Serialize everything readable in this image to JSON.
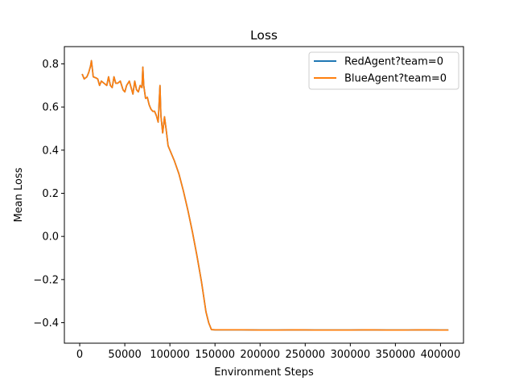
{
  "chart_data": {
    "type": "line",
    "title": "Loss",
    "xlabel": "Environment Steps",
    "ylabel": "Mean Loss",
    "xlim": [
      -17000,
      425500
    ],
    "ylim": [
      -0.495,
      0.88
    ],
    "xticks": [
      0,
      50000,
      100000,
      150000,
      200000,
      250000,
      300000,
      350000,
      400000
    ],
    "xtick_labels": [
      "0",
      "50000",
      "100000",
      "150000",
      "200000",
      "250000",
      "300000",
      "350000",
      "400000"
    ],
    "yticks": [
      -0.4,
      -0.2,
      0.0,
      0.2,
      0.4,
      0.6,
      0.8
    ],
    "ytick_labels": [
      "−0.4",
      "−0.2",
      "0.0",
      "0.2",
      "0.4",
      "0.6",
      "0.8"
    ],
    "grid": false,
    "legend_position": "upper right",
    "series": [
      {
        "name": "RedAgent?team=0",
        "color": "#1f77b4",
        "x": [
          3000,
          5000,
          8000,
          10000,
          12000,
          13000,
          15000,
          18000,
          20000,
          22000,
          24000,
          27000,
          30000,
          32000,
          34000,
          36000,
          38000,
          40000,
          42000,
          45000,
          48000,
          50000,
          52000,
          55000,
          57000,
          59000,
          61000,
          63000,
          65000,
          67000,
          69000,
          70000,
          71000,
          73000,
          75000,
          77000,
          79000,
          81000,
          83000,
          85000,
          87000,
          89000,
          90000,
          92000,
          94000,
          96000,
          98000,
          100000,
          105000,
          110000,
          115000,
          120000,
          125000,
          130000,
          135000,
          140000,
          143000,
          146000,
          150000,
          160000,
          180000,
          200000,
          220000,
          240000,
          260000,
          280000,
          300000,
          320000,
          340000,
          360000,
          380000,
          400000,
          408000
        ],
        "y": [
          0.75,
          0.73,
          0.74,
          0.76,
          0.79,
          0.815,
          0.74,
          0.735,
          0.73,
          0.7,
          0.72,
          0.71,
          0.7,
          0.74,
          0.7,
          0.69,
          0.74,
          0.71,
          0.71,
          0.72,
          0.68,
          0.67,
          0.7,
          0.72,
          0.69,
          0.66,
          0.72,
          0.68,
          0.67,
          0.7,
          0.69,
          0.785,
          0.7,
          0.64,
          0.645,
          0.61,
          0.59,
          0.58,
          0.58,
          0.56,
          0.53,
          0.7,
          0.56,
          0.48,
          0.555,
          0.49,
          0.42,
          0.4,
          0.35,
          0.29,
          0.21,
          0.12,
          0.02,
          -0.09,
          -0.21,
          -0.35,
          -0.4,
          -0.432,
          -0.433,
          -0.433,
          -0.433,
          -0.434,
          -0.434,
          -0.433,
          -0.434,
          -0.434,
          -0.434,
          -0.433,
          -0.434,
          -0.434,
          -0.433,
          -0.434,
          -0.434
        ]
      },
      {
        "name": "BlueAgent?team=0",
        "color": "#ff7f0e",
        "x": [
          3000,
          5000,
          8000,
          10000,
          12000,
          13000,
          15000,
          18000,
          20000,
          22000,
          24000,
          27000,
          30000,
          32000,
          34000,
          36000,
          38000,
          40000,
          42000,
          45000,
          48000,
          50000,
          52000,
          55000,
          57000,
          59000,
          61000,
          63000,
          65000,
          67000,
          69000,
          70000,
          71000,
          73000,
          75000,
          77000,
          79000,
          81000,
          83000,
          85000,
          87000,
          89000,
          90000,
          92000,
          94000,
          96000,
          98000,
          100000,
          105000,
          110000,
          115000,
          120000,
          125000,
          130000,
          135000,
          140000,
          143000,
          146000,
          150000,
          160000,
          180000,
          200000,
          220000,
          240000,
          260000,
          280000,
          300000,
          320000,
          340000,
          360000,
          380000,
          400000,
          408000
        ],
        "y": [
          0.75,
          0.73,
          0.74,
          0.76,
          0.79,
          0.815,
          0.74,
          0.735,
          0.73,
          0.7,
          0.72,
          0.71,
          0.7,
          0.74,
          0.7,
          0.69,
          0.74,
          0.71,
          0.71,
          0.72,
          0.68,
          0.67,
          0.7,
          0.72,
          0.69,
          0.66,
          0.72,
          0.68,
          0.67,
          0.7,
          0.69,
          0.785,
          0.7,
          0.64,
          0.645,
          0.61,
          0.59,
          0.58,
          0.58,
          0.56,
          0.53,
          0.7,
          0.56,
          0.48,
          0.555,
          0.49,
          0.42,
          0.4,
          0.35,
          0.29,
          0.21,
          0.12,
          0.02,
          -0.09,
          -0.21,
          -0.35,
          -0.4,
          -0.432,
          -0.433,
          -0.433,
          -0.433,
          -0.434,
          -0.434,
          -0.433,
          -0.434,
          -0.434,
          -0.434,
          -0.433,
          -0.434,
          -0.434,
          -0.433,
          -0.434,
          -0.434
        ]
      }
    ]
  }
}
